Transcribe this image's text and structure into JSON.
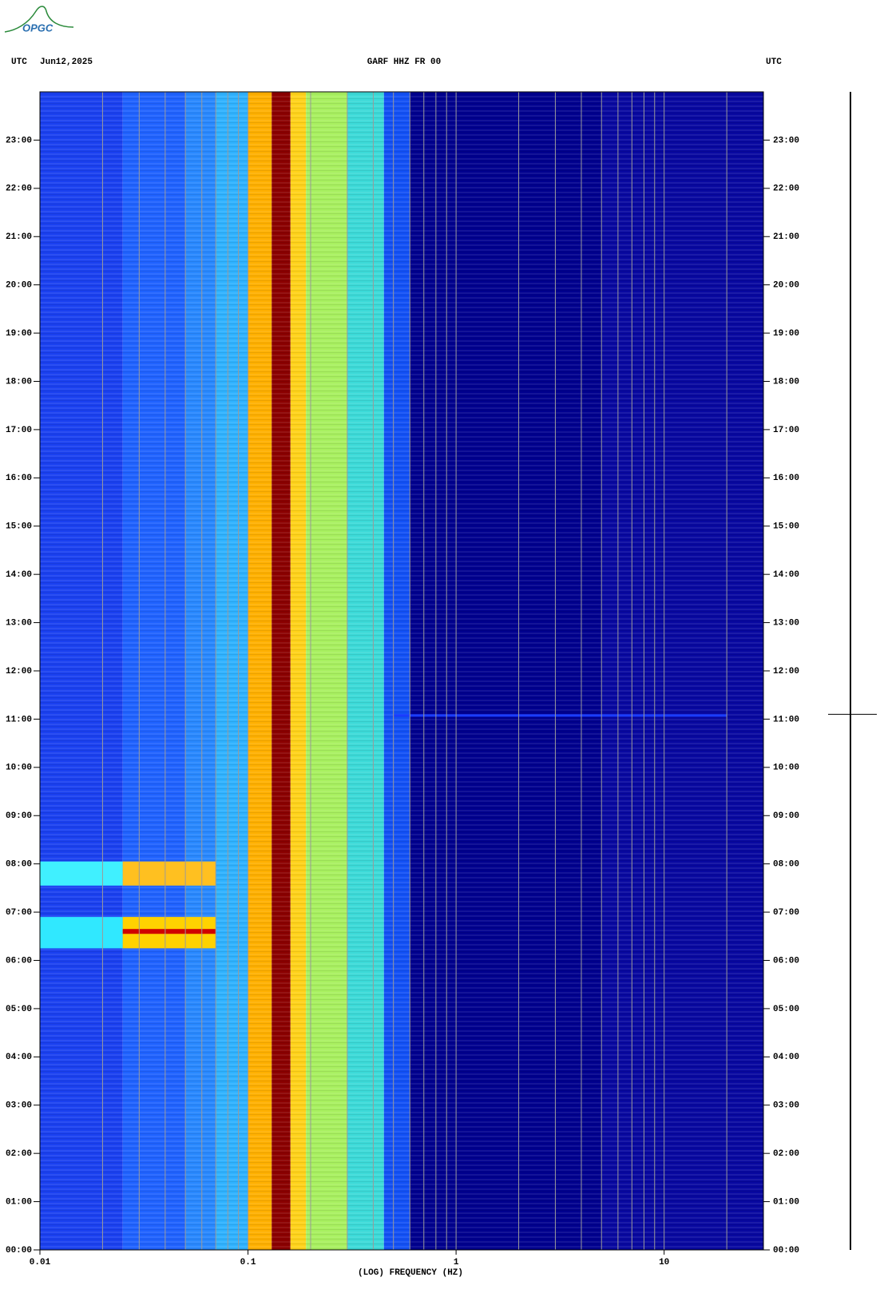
{
  "logo": "OPGC",
  "chart_data": {
    "type": "spectrogram",
    "title": "GARF HHZ FR 00",
    "left_label": "UTC",
    "date": "Jun12,2025",
    "right_label": "UTC",
    "xlabel": "(LOG) FREQUENCY (HZ)",
    "xlog": true,
    "xlim": [
      0.01,
      30
    ],
    "xticks": [
      0.01,
      0.1,
      1,
      10
    ],
    "xgrid": [
      0.02,
      0.03,
      0.04,
      0.05,
      0.06,
      0.07,
      0.08,
      0.09,
      0.1,
      0.2,
      0.3,
      0.4,
      0.5,
      0.6,
      0.7,
      0.8,
      0.9,
      1,
      2,
      3,
      4,
      5,
      6,
      7,
      8,
      9,
      10,
      20
    ],
    "ylim": [
      0,
      24
    ],
    "yticks": [
      {
        "value": 0,
        "label": "00:00"
      },
      {
        "value": 1,
        "label": "01:00"
      },
      {
        "value": 2,
        "label": "02:00"
      },
      {
        "value": 3,
        "label": "03:00"
      },
      {
        "value": 4,
        "label": "04:00"
      },
      {
        "value": 5,
        "label": "05:00"
      },
      {
        "value": 6,
        "label": "06:00"
      },
      {
        "value": 7,
        "label": "07:00"
      },
      {
        "value": 8,
        "label": "08:00"
      },
      {
        "value": 9,
        "label": "09:00"
      },
      {
        "value": 10,
        "label": "10:00"
      },
      {
        "value": 11,
        "label": "11:00"
      },
      {
        "value": 12,
        "label": "12:00"
      },
      {
        "value": 13,
        "label": "13:00"
      },
      {
        "value": 14,
        "label": "14:00"
      },
      {
        "value": 15,
        "label": "15:00"
      },
      {
        "value": 16,
        "label": "16:00"
      },
      {
        "value": 17,
        "label": "17:00"
      },
      {
        "value": 18,
        "label": "18:00"
      },
      {
        "value": 19,
        "label": "19:00"
      },
      {
        "value": 20,
        "label": "20:00"
      },
      {
        "value": 21,
        "label": "21:00"
      },
      {
        "value": 22,
        "label": "22:00"
      },
      {
        "value": 23,
        "label": "23:00"
      }
    ],
    "bands": [
      {
        "f": [
          0.01,
          0.025
        ],
        "color": "#1a40f0"
      },
      {
        "f": [
          0.025,
          0.05
        ],
        "color": "#1f62ff"
      },
      {
        "f": [
          0.05,
          0.07
        ],
        "color": "#2888ff"
      },
      {
        "f": [
          0.07,
          0.1
        ],
        "color": "#2fb2ff"
      },
      {
        "f": [
          0.1,
          0.13
        ],
        "color": "#ffb000"
      },
      {
        "f": [
          0.13,
          0.16
        ],
        "color": "#8b0000"
      },
      {
        "f": [
          0.16,
          0.19
        ],
        "color": "#ffd21a"
      },
      {
        "f": [
          0.19,
          0.3
        ],
        "color": "#a8f060"
      },
      {
        "f": [
          0.3,
          0.45
        ],
        "color": "#3cdad8"
      },
      {
        "f": [
          0.45,
          0.6
        ],
        "color": "#1250f5"
      },
      {
        "f": [
          0.6,
          5
        ],
        "color": "#00008e"
      },
      {
        "f": [
          5,
          30
        ],
        "color": "#0808a0"
      }
    ],
    "events": [
      {
        "t": [
          6.25,
          6.9
        ],
        "f": [
          0.01,
          0.025
        ],
        "color": "#30e8ff"
      },
      {
        "t": [
          6.25,
          6.9
        ],
        "f": [
          0.025,
          0.07
        ],
        "color": "#ffd200"
      },
      {
        "t": [
          6.55,
          6.65
        ],
        "f": [
          0.025,
          0.07
        ],
        "color": "#d00000"
      },
      {
        "t": [
          7.55,
          8.05
        ],
        "f": [
          0.01,
          0.025
        ],
        "color": "#40f0ff"
      },
      {
        "t": [
          7.55,
          8.05
        ],
        "f": [
          0.025,
          0.07
        ],
        "color": "#ffc020"
      },
      {
        "t": [
          11.05,
          11.1
        ],
        "f": [
          0.5,
          20
        ],
        "color": "#1a3cff"
      }
    ],
    "spike_time": 11.1
  }
}
